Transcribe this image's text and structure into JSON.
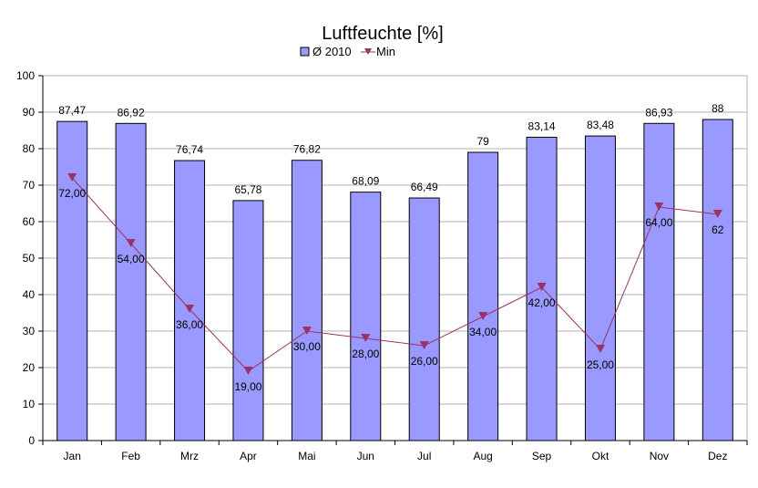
{
  "chart_data": {
    "type": "bar",
    "title": "Luftfeuchte [%]",
    "xlabel": "",
    "ylabel": "",
    "ylim": [
      0,
      100
    ],
    "ytick_step": 10,
    "grid": true,
    "legend_position": "top",
    "categories": [
      "Jan",
      "Feb",
      "Mrz",
      "Apr",
      "Mai",
      "Jun",
      "Jul",
      "Aug",
      "Sep",
      "Okt",
      "Nov",
      "Dez"
    ],
    "series": [
      {
        "name": "Ø 2010",
        "kind": "bar",
        "color": "#9999ff",
        "values": [
          87.47,
          86.92,
          76.74,
          65.78,
          76.82,
          68.09,
          66.49,
          79,
          83.14,
          83.48,
          86.93,
          88
        ],
        "labels": [
          "87,47",
          "86,92",
          "76,74",
          "65,78",
          "76,82",
          "68,09",
          "66,49",
          "79",
          "83,14",
          "83,48",
          "86,93",
          "88"
        ]
      },
      {
        "name": "Min",
        "kind": "line",
        "marker": "triangle-down",
        "color": "#993366",
        "values": [
          72,
          54,
          36,
          19,
          30,
          28,
          26,
          34,
          42,
          25,
          64,
          62
        ],
        "labels": [
          "72,00",
          "54,00",
          "36,00",
          "19,00",
          "30,00",
          "28,00",
          "26,00",
          "34,00",
          "42,00",
          "25,00",
          "64,00",
          "62"
        ]
      }
    ]
  }
}
